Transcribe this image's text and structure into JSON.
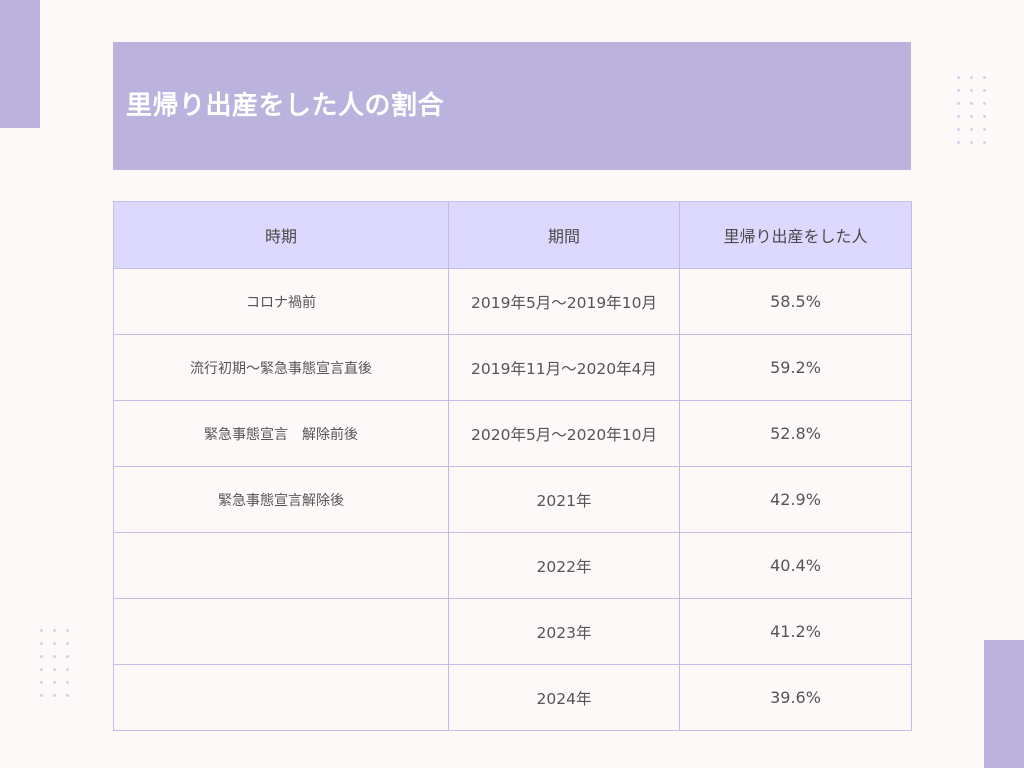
{
  "title": "里帰り出産をした人の割合",
  "colors": {
    "background": "#fdf9f8",
    "accent": "#bbb2de",
    "header_bg": "#ddd8fd",
    "border": "#c6bde6",
    "title_text": "#ffffff"
  },
  "table": {
    "headers": [
      "時期",
      "期間",
      "里帰り出産をした人"
    ],
    "rows": [
      {
        "period_label": "コロナ禍前",
        "range": "2019年5月〜2019年10月",
        "rate": "58.5%"
      },
      {
        "period_label": "流行初期〜緊急事態宣言直後",
        "range": "2019年11月〜2020年4月",
        "rate": "59.2%"
      },
      {
        "period_label": "緊急事態宣言　解除前後",
        "range": "2020年5月〜2020年10月",
        "rate": "52.8%"
      },
      {
        "period_label": "緊急事態宣言解除後",
        "range": "2021年",
        "rate": "42.9%"
      },
      {
        "period_label": "",
        "range": "2022年",
        "rate": "40.4%"
      },
      {
        "period_label": "",
        "range": "2023年",
        "rate": "41.2%"
      },
      {
        "period_label": "",
        "range": "2024年",
        "rate": "39.6%"
      }
    ]
  }
}
